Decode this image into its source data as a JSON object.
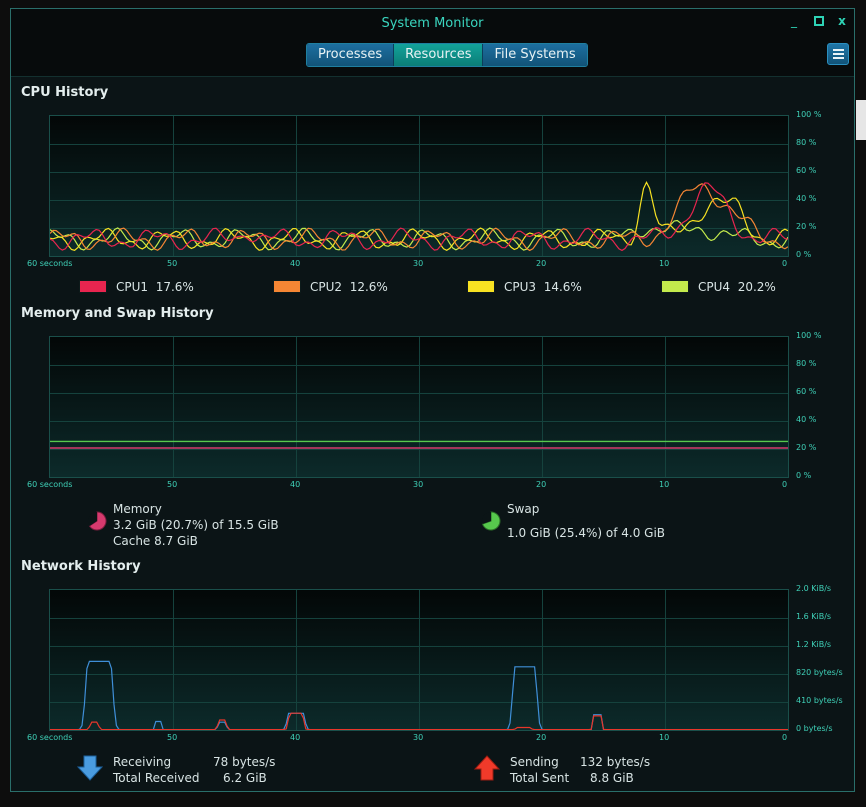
{
  "window": {
    "title": "System Monitor",
    "tabs": [
      {
        "label": "Processes",
        "active": false
      },
      {
        "label": "Resources",
        "active": true
      },
      {
        "label": "File Systems",
        "active": false
      }
    ],
    "controls": {
      "minimize": "_",
      "maximize": "▫",
      "close": "x"
    }
  },
  "cpu": {
    "title": "CPU History",
    "y_ticks": [
      "100 %",
      "80 %",
      "60 %",
      "40 %",
      "20 %",
      "0 %"
    ],
    "x_ticks": [
      "60 seconds",
      "50",
      "40",
      "30",
      "20",
      "10",
      "0"
    ],
    "legend": [
      {
        "name": "CPU1",
        "value": "17.6%",
        "color": "#e8254f"
      },
      {
        "name": "CPU2",
        "value": "12.6%",
        "color": "#f58634"
      },
      {
        "name": "CPU3",
        "value": "14.6%",
        "color": "#f8e222"
      },
      {
        "name": "CPU4",
        "value": "20.2%",
        "color": "#c3ea4c"
      }
    ]
  },
  "memory": {
    "title": "Memory and Swap History",
    "y_ticks": [
      "100 %",
      "80 %",
      "60 %",
      "40 %",
      "20 %",
      "0 %"
    ],
    "x_ticks": [
      "60 seconds",
      "50",
      "40",
      "30",
      "20",
      "10",
      "0"
    ],
    "memory_label": "Memory",
    "memory_usage": "3.2 GiB (20.7%) of 15.5 GiB",
    "cache": "Cache 8.7 GiB",
    "memory_color": "#d63a6e",
    "swap_label": "Swap",
    "swap_usage": "1.0 GiB (25.4%) of 4.0 GiB",
    "swap_color": "#57c84d"
  },
  "network": {
    "title": "Network History",
    "y_ticks": [
      "2.0 KiB/s",
      "1.6 KiB/s",
      "1.2 KiB/s",
      "820 bytes/s",
      "410 bytes/s",
      "0 bytes/s"
    ],
    "x_ticks": [
      "60 seconds",
      "50",
      "40",
      "30",
      "20",
      "10",
      "0"
    ],
    "receiving_label": "Receiving",
    "receiving_value": "78 bytes/s",
    "total_received_label": "Total Received",
    "total_received_value": "6.2 GiB",
    "sending_label": "Sending",
    "sending_value": "132 bytes/s",
    "total_sent_label": "Total Sent",
    "total_sent_value": "8.8 GiB",
    "receive_color": "#3f8fd8",
    "send_color": "#e8362a"
  }
}
